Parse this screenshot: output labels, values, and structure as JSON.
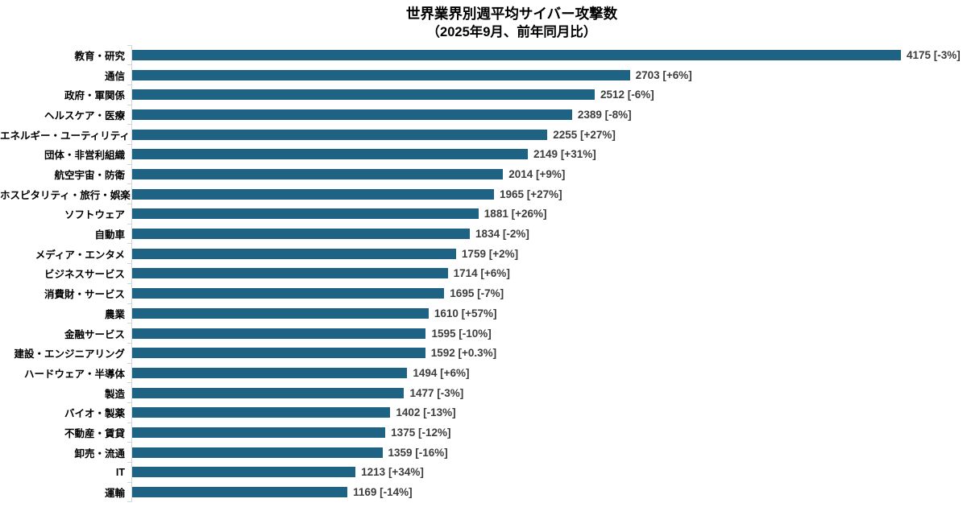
{
  "page": {
    "title": "世界業界別週平均サイバー攻撃数",
    "subtitle": "（2025年9月、前年同月比）"
  },
  "chart_data": {
    "type": "bar",
    "orientation": "horizontal",
    "title": "世界業界別週平均サイバー攻撃数",
    "subtitle": "（2025年9月、前年同月比）",
    "xlabel": "",
    "ylabel": "",
    "xlim": [
      0,
      4534
    ],
    "grid": false,
    "legend": "none",
    "bar_color": "#1f6384",
    "axis_color": "#d4d4d4",
    "value_label_color": "#3d3d3d",
    "categories": [
      "教育・研究",
      "通信",
      "政府・軍関係",
      "ヘルスケア・医療",
      "エネルギー・ユーティリティ",
      "団体・非営利組織",
      "航空宇宙・防衛",
      "ホスピタリティ・旅行・娯楽",
      "ソフトウェア",
      "自動車",
      "メディア・エンタメ",
      "ビジネスサービス",
      "消費財・サービス",
      "農業",
      "金融サービス",
      "建設・エンジニアリング",
      "ハードウェア・半導体",
      "製造",
      "バイオ・製薬",
      "不動産・賃貸",
      "卸売・流通",
      "IT",
      "運輸"
    ],
    "values": [
      4175,
      2703,
      2512,
      2389,
      2255,
      2149,
      2014,
      1965,
      1881,
      1834,
      1759,
      1714,
      1695,
      1610,
      1595,
      1592,
      1494,
      1477,
      1402,
      1375,
      1359,
      1213,
      1169
    ],
    "yoy_changes": [
      "-3%",
      "+6%",
      "-6%",
      "-8%",
      "+27%",
      "+31%",
      "+9%",
      "+27%",
      "+26%",
      "-2%",
      "+2%",
      "+6%",
      "-7%",
      "+57%",
      "-10%",
      "+0.3%",
      "+6%",
      "-3%",
      "-13%",
      "-12%",
      "-16%",
      "+34%",
      "-14%"
    ],
    "value_labels": [
      "4175 [-3%]",
      "2703 [+6%]",
      "2512 [-6%]",
      "2389 [-8%]",
      "2255 [+27%]",
      "2149 [+31%]",
      "2014 [+9%]",
      "1965 [+27%]",
      "1881 [+26%]",
      "1834 [-2%]",
      "1759 [+2%]",
      "1714 [+6%]",
      "1695 [-7%]",
      "1610 [+57%]",
      "1595 [-10%]",
      "1592 [+0.3%]",
      "1494 [+6%]",
      "1477 [-3%]",
      "1402 [-13%]",
      "1375 [-12%]",
      "1359 [-16%]",
      "1213 [+34%]",
      "1169 [-14%]"
    ]
  }
}
